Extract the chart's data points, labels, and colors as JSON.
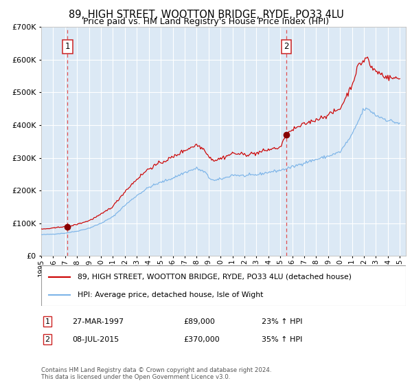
{
  "title1": "89, HIGH STREET, WOOTTON BRIDGE, RYDE, PO33 4LU",
  "title2": "Price paid vs. HM Land Registry's House Price Index (HPI)",
  "legend_line1": "89, HIGH STREET, WOOTTON BRIDGE, RYDE, PO33 4LU (detached house)",
  "legend_line2": "HPI: Average price, detached house, Isle of Wight",
  "transaction1_date": "27-MAR-1997",
  "transaction1_date_num": 1997.21,
  "transaction1_price": 89000,
  "transaction1_note": "23% ↑ HPI",
  "transaction2_date": "08-JUL-2015",
  "transaction2_date_num": 2015.52,
  "transaction2_price": 370000,
  "transaction2_note": "35% ↑ HPI",
  "ylim": [
    0,
    700000
  ],
  "yticks": [
    0,
    100000,
    200000,
    300000,
    400000,
    500000,
    600000,
    700000
  ],
  "background_color": "#dce9f5",
  "grid_color": "#ffffff",
  "red_line_color": "#cc0000",
  "blue_line_color": "#7cb4e8",
  "dashed_line_color": "#e05050",
  "marker_color": "#880000",
  "footer_text": "Contains HM Land Registry data © Crown copyright and database right 2024.\nThis data is licensed under the Open Government Licence v3.0.",
  "xstart": 1995.0,
  "xend": 2025.5,
  "hpi_checkpoints": [
    [
      1995.0,
      65000
    ],
    [
      1996.0,
      67000
    ],
    [
      1997.0,
      70000
    ],
    [
      1998.0,
      76000
    ],
    [
      1999.0,
      85000
    ],
    [
      2000.0,
      100000
    ],
    [
      2001.0,
      120000
    ],
    [
      2002.0,
      155000
    ],
    [
      2003.0,
      185000
    ],
    [
      2004.0,
      210000
    ],
    [
      2005.0,
      225000
    ],
    [
      2006.0,
      238000
    ],
    [
      2007.0,
      255000
    ],
    [
      2008.0,
      268000
    ],
    [
      2008.75,
      255000
    ],
    [
      2009.0,
      240000
    ],
    [
      2009.5,
      230000
    ],
    [
      2010.0,
      235000
    ],
    [
      2010.5,
      240000
    ],
    [
      2011.0,
      248000
    ],
    [
      2012.0,
      245000
    ],
    [
      2013.0,
      248000
    ],
    [
      2014.0,
      256000
    ],
    [
      2015.0,
      262000
    ],
    [
      2016.0,
      272000
    ],
    [
      2017.0,
      285000
    ],
    [
      2018.0,
      295000
    ],
    [
      2019.0,
      305000
    ],
    [
      2020.0,
      318000
    ],
    [
      2021.0,
      370000
    ],
    [
      2021.5,
      410000
    ],
    [
      2022.0,
      450000
    ],
    [
      2022.5,
      445000
    ],
    [
      2023.0,
      430000
    ],
    [
      2024.0,
      415000
    ],
    [
      2025.0,
      405000
    ]
  ],
  "red_checkpoints_pre2015": [
    [
      1995.0,
      82000
    ],
    [
      1996.0,
      85000
    ],
    [
      1997.0,
      91000
    ],
    [
      1997.21,
      89000
    ],
    [
      1998.0,
      97000
    ],
    [
      1999.0,
      108000
    ],
    [
      2000.0,
      127000
    ],
    [
      2001.0,
      152000
    ],
    [
      2002.0,
      197000
    ],
    [
      2003.0,
      235000
    ],
    [
      2004.0,
      267000
    ],
    [
      2005.0,
      285000
    ],
    [
      2006.0,
      302000
    ],
    [
      2007.0,
      323000
    ],
    [
      2008.0,
      340000
    ],
    [
      2008.75,
      323000
    ],
    [
      2009.0,
      304000
    ],
    [
      2009.5,
      292000
    ],
    [
      2010.0,
      298000
    ],
    [
      2010.5,
      305000
    ],
    [
      2011.0,
      314000
    ],
    [
      2012.0,
      310000
    ],
    [
      2013.0,
      314000
    ],
    [
      2014.0,
      325000
    ],
    [
      2015.0,
      332000
    ],
    [
      2015.52,
      370000
    ]
  ],
  "red_checkpoints_post2015": [
    [
      2015.52,
      370000
    ],
    [
      2016.0,
      385000
    ],
    [
      2017.0,
      403000
    ],
    [
      2018.0,
      417000
    ],
    [
      2019.0,
      431000
    ],
    [
      2020.0,
      450000
    ],
    [
      2021.0,
      523000
    ],
    [
      2021.5,
      580000
    ],
    [
      2022.0,
      598000
    ],
    [
      2022.3,
      610000
    ],
    [
      2022.5,
      580000
    ],
    [
      2023.0,
      565000
    ],
    [
      2023.5,
      555000
    ],
    [
      2024.0,
      545000
    ],
    [
      2025.0,
      542000
    ]
  ]
}
